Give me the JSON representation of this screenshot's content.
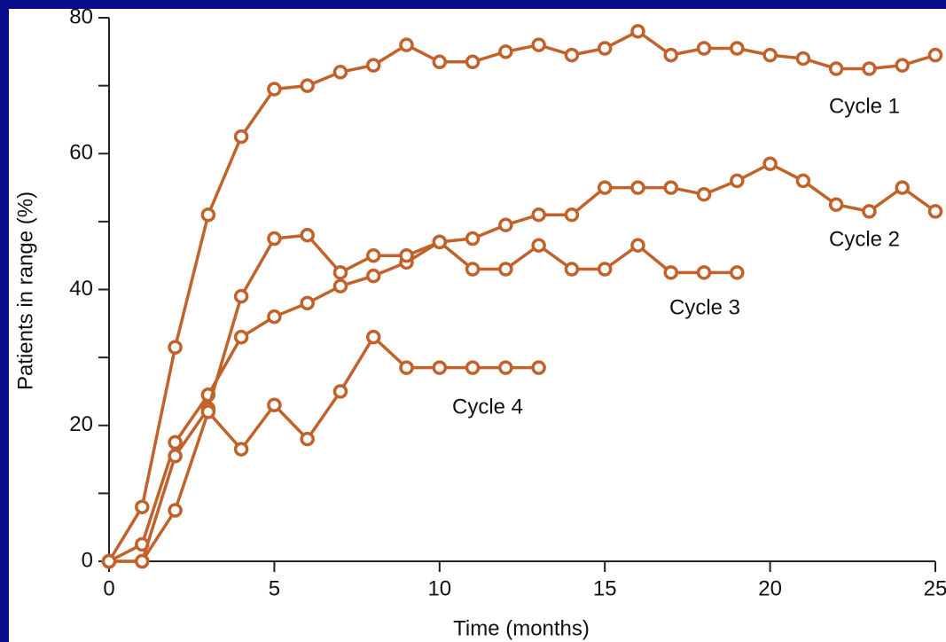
{
  "chart_data": {
    "type": "line",
    "x_label": "Time (months)",
    "y_label": "Patients in range (%)",
    "xlim": [
      0,
      25
    ],
    "xticks": [
      0,
      5,
      10,
      15,
      20,
      25
    ],
    "ylim": [
      0,
      80
    ],
    "yticks": [
      0,
      20,
      40,
      60,
      80
    ],
    "yminor_ticks": [
      10,
      30,
      50,
      70
    ],
    "series": [
      {
        "name": "Cycle 1",
        "color": "#c1622b",
        "x": [
          0,
          1,
          2,
          3,
          4,
          5,
          6,
          7,
          8,
          9,
          10,
          11,
          12,
          13,
          14,
          15,
          16,
          17,
          18,
          19,
          20,
          21,
          22,
          23,
          24,
          25
        ],
        "values": [
          0,
          8,
          31.5,
          51,
          62.5,
          69.5,
          70,
          72,
          73,
          76,
          73.5,
          73.5,
          75,
          76,
          74.5,
          75.5,
          78,
          74.5,
          75.5,
          75.5,
          74.5,
          74,
          72.5,
          72.5,
          73,
          74.5
        ]
      },
      {
        "name": "Cycle 2",
        "color": "#c1622b",
        "x": [
          0,
          1,
          2,
          3,
          4,
          5,
          6,
          7,
          8,
          9,
          10,
          11,
          12,
          13,
          14,
          15,
          16,
          17,
          18,
          19,
          20,
          21,
          22,
          23,
          24,
          25
        ],
        "values": [
          0,
          2.5,
          17.5,
          24.5,
          33,
          36,
          38,
          40.5,
          42,
          44,
          47,
          47.5,
          49.5,
          51,
          51,
          55,
          55,
          55,
          54,
          56,
          58.5,
          56,
          52.5,
          51.5,
          55,
          51.5
        ]
      },
      {
        "name": "Cycle 3",
        "color": "#c1622b",
        "x": [
          0,
          1,
          2,
          3,
          4,
          5,
          6,
          7,
          8,
          9,
          10,
          11,
          12,
          13,
          14,
          15,
          16,
          17,
          18,
          19
        ],
        "values": [
          0,
          0,
          15.5,
          22.5,
          39,
          47.5,
          48,
          42.5,
          45,
          45,
          47,
          43,
          43,
          46.5,
          43,
          43,
          46.5,
          42.5,
          42.5,
          42.5
        ]
      },
      {
        "name": "Cycle 4",
        "color": "#c1622b",
        "x": [
          0,
          1,
          2,
          3,
          4,
          5,
          6,
          7,
          8,
          9,
          10,
          11,
          12,
          13
        ],
        "values": [
          0,
          0,
          7.5,
          22,
          16.5,
          23,
          18,
          25,
          33,
          28.5,
          28.5,
          28.5,
          28.5,
          28.5
        ]
      }
    ]
  }
}
